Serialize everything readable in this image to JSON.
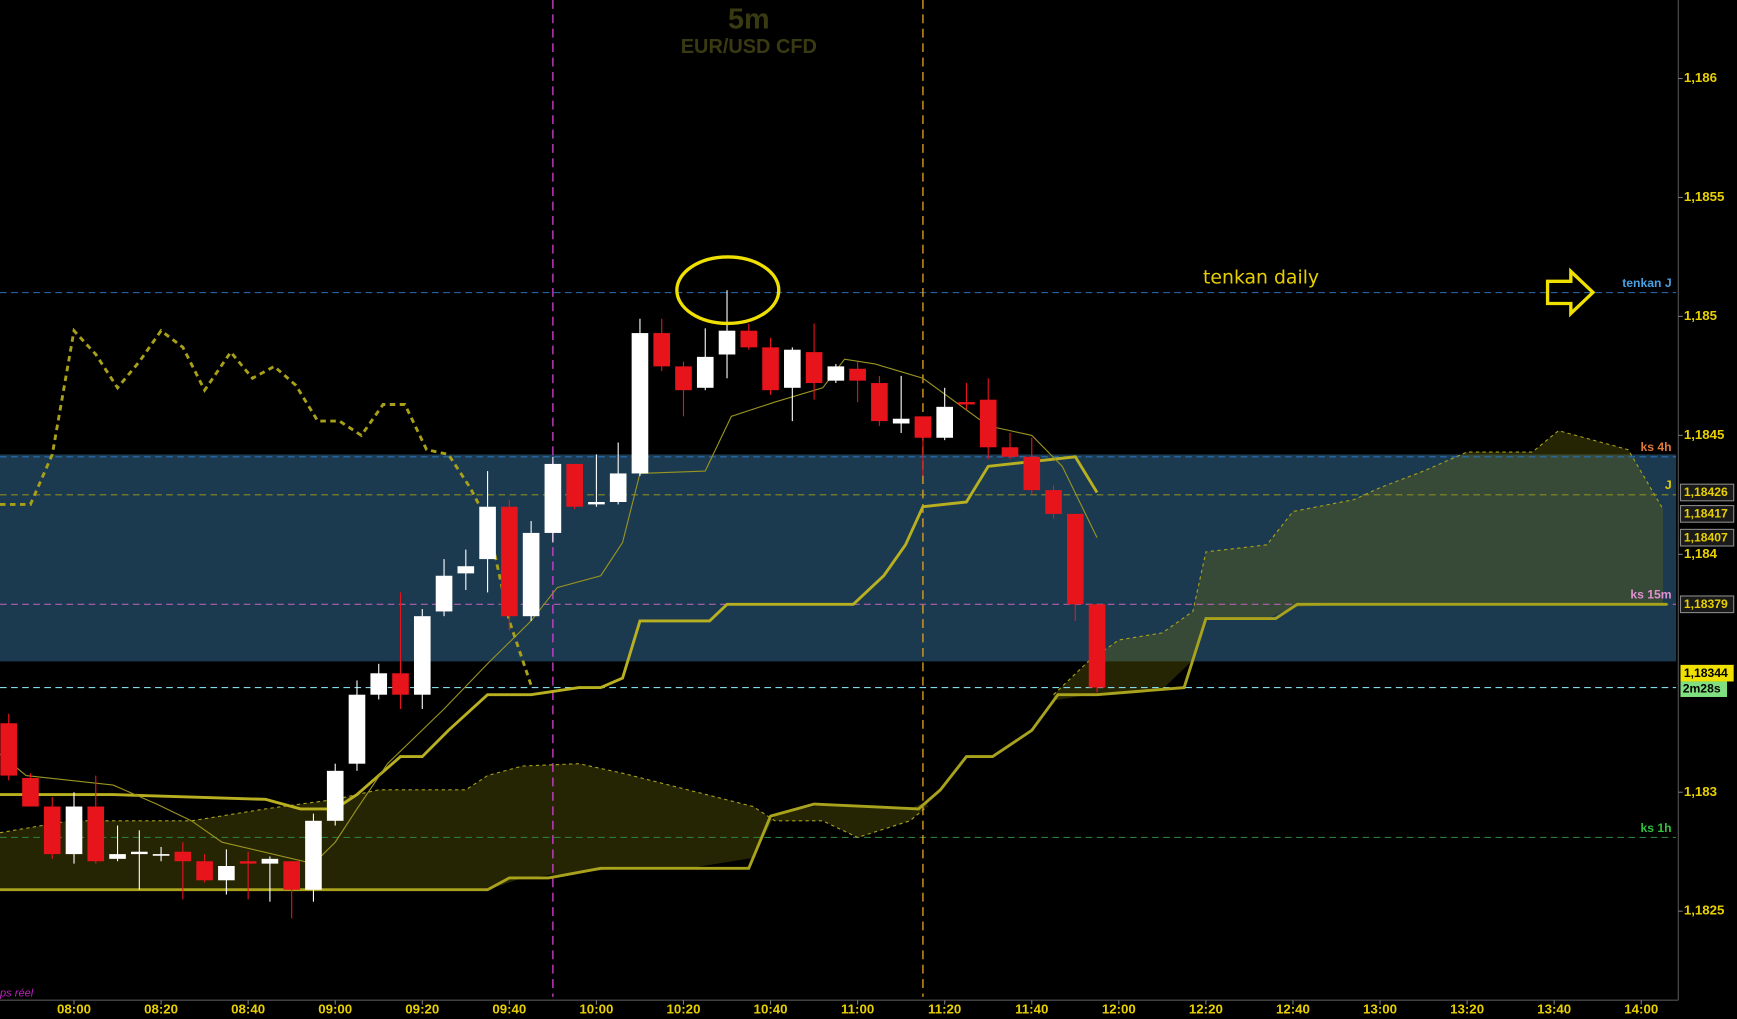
{
  "chart_data": {
    "type": "candlestick",
    "title": "5m",
    "subtitle": "EUR/USD CFD",
    "annotation": "tenkan daily",
    "status": "ps réel",
    "up_color": "#ffffff",
    "down_color": "#e8141c",
    "xlim": [
      "07:43",
      "14:08"
    ],
    "xticks": [
      "08:00",
      "08:20",
      "08:40",
      "09:00",
      "09:20",
      "09:40",
      "10:00",
      "10:20",
      "10:40",
      "11:00",
      "11:20",
      "11:40",
      "12:00",
      "12:20",
      "12:40",
      "13:00",
      "13:20",
      "13:40",
      "14:00"
    ],
    "ylim": [
      1.18214,
      1.18633
    ],
    "yticks": [
      {
        "value": 1.1825,
        "label": "1,1825"
      },
      {
        "value": 1.183,
        "label": "1,183"
      },
      {
        "value": 1.184,
        "label": "1,184"
      },
      {
        "value": 1.1845,
        "label": "1,1845"
      },
      {
        "value": 1.185,
        "label": "1,185"
      },
      {
        "value": 1.1855,
        "label": "1,1855"
      },
      {
        "value": 1.186,
        "label": "1,186"
      }
    ],
    "grid": false,
    "x": [
      "07:45",
      "07:50",
      "07:55",
      "08:00",
      "08:05",
      "08:10",
      "08:15",
      "08:20",
      "08:25",
      "08:30",
      "08:35",
      "08:40",
      "08:45",
      "08:50",
      "08:55",
      "09:00",
      "09:05",
      "09:10",
      "09:15",
      "09:20",
      "09:25",
      "09:30",
      "09:35",
      "09:40",
      "09:45",
      "09:50",
      "09:55",
      "10:00",
      "10:05",
      "10:10",
      "10:15",
      "10:20",
      "10:25",
      "10:30",
      "10:35",
      "10:40",
      "10:45",
      "10:50",
      "10:55",
      "11:00",
      "11:05",
      "11:10",
      "11:15",
      "11:20",
      "11:25",
      "11:30",
      "11:35",
      "11:40",
      "11:45",
      "11:50",
      "11:55"
    ],
    "open": [
      1.18329,
      1.18306,
      1.18294,
      1.18274,
      1.18294,
      1.18272,
      1.18274,
      1.18274,
      1.18275,
      1.18271,
      1.18263,
      1.18271,
      1.1827,
      1.18271,
      1.18259,
      1.18288,
      1.18312,
      1.18341,
      1.1835,
      1.18341,
      1.18376,
      1.18392,
      1.18398,
      1.1842,
      1.18374,
      1.18409,
      1.18438,
      1.18421,
      1.18422,
      1.18434,
      1.18493,
      1.18479,
      1.1847,
      1.18484,
      1.18494,
      1.18487,
      1.1847,
      1.18485,
      1.18473,
      1.18478,
      1.18472,
      1.18455,
      1.18458,
      1.18449,
      1.18464,
      1.18465,
      1.18445,
      1.18441,
      1.18427,
      1.18417,
      1.18379
    ],
    "high": [
      1.18333,
      1.18308,
      1.18298,
      1.183,
      1.18307,
      1.18286,
      1.18284,
      1.18277,
      1.18279,
      1.18274,
      1.18276,
      1.18275,
      1.18273,
      1.18271,
      1.18291,
      1.18312,
      1.18347,
      1.18354,
      1.18384,
      1.18377,
      1.18398,
      1.18402,
      1.18435,
      1.18423,
      1.18414,
      1.18441,
      1.18438,
      1.18442,
      1.18447,
      1.18499,
      1.18499,
      1.18481,
      1.18495,
      1.18511,
      1.18497,
      1.18491,
      1.18487,
      1.18497,
      1.1848,
      1.18481,
      1.18475,
      1.18475,
      1.18458,
      1.1847,
      1.18472,
      1.18474,
      1.18451,
      1.18449,
      1.18429,
      1.18417,
      1.18379
    ],
    "low": [
      1.18305,
      1.18294,
      1.18272,
      1.1827,
      1.1827,
      1.18271,
      1.18259,
      1.18271,
      1.18255,
      1.18262,
      1.18257,
      1.18255,
      1.18254,
      1.18247,
      1.18254,
      1.18286,
      1.18309,
      1.18339,
      1.18335,
      1.18335,
      1.18374,
      1.18385,
      1.18384,
      1.18368,
      1.18372,
      1.18405,
      1.18419,
      1.1842,
      1.18421,
      1.18433,
      1.18477,
      1.18458,
      1.18469,
      1.18474,
      1.18486,
      1.18467,
      1.18456,
      1.18465,
      1.18472,
      1.18464,
      1.18454,
      1.18451,
      1.18433,
      1.18448,
      1.18461,
      1.1844,
      1.1844,
      1.18425,
      1.18415,
      1.18372,
      1.18342
    ],
    "close": [
      1.18307,
      1.18294,
      1.18274,
      1.18294,
      1.18271,
      1.18274,
      1.18275,
      1.18274,
      1.18271,
      1.18263,
      1.18269,
      1.1827,
      1.18272,
      1.18259,
      1.18288,
      1.18309,
      1.18341,
      1.1835,
      1.18341,
      1.18374,
      1.18391,
      1.18395,
      1.1842,
      1.18374,
      1.18409,
      1.18438,
      1.1842,
      1.18422,
      1.18434,
      1.18493,
      1.18479,
      1.18469,
      1.18483,
      1.18494,
      1.18487,
      1.18469,
      1.18486,
      1.18472,
      1.18479,
      1.18473,
      1.18456,
      1.18457,
      1.18449,
      1.18462,
      1.18463,
      1.18445,
      1.18441,
      1.18427,
      1.18417,
      1.18379,
      1.18344
    ],
    "lines": [
      {
        "color": "#a8a21c",
        "style": "thick",
        "x": [
          "07:43",
          "09:35",
          "09:40",
          "09:49",
          "10:01",
          "10:35",
          "10:40",
          "10:50",
          "11:14",
          "11:19",
          "11:25",
          "11:31",
          "11:40",
          "11:46",
          "11:55",
          "12:15",
          "12:20",
          "12:36",
          "12:41",
          "14:06"
        ],
        "values": [
          1.18259,
          1.18259,
          1.18264,
          1.18264,
          1.18268,
          1.18268,
          1.1829,
          1.18295,
          1.18293,
          1.18301,
          1.18315,
          1.18315,
          1.18326,
          1.18341,
          1.18341,
          1.18344,
          1.18373,
          1.18373,
          1.18379,
          1.18379
        ]
      },
      {
        "color": "#a8a21c",
        "style": "dashed",
        "fill": "rgba(110,105,10,0.35)",
        "x": [
          "07:43",
          "07:59",
          "08:27",
          "08:44",
          "09:00",
          "09:10",
          "09:20",
          "09:30",
          "09:35",
          "09:43",
          "09:56",
          "10:06",
          "10:21",
          "10:36",
          "10:41",
          "10:52",
          "11:00",
          "11:12",
          "11:16",
          null,
          "11:45",
          "11:53",
          "12:00",
          "12:10",
          "12:17",
          "12:20",
          "12:34",
          "12:40",
          "12:54",
          "13:00",
          "13:10",
          "13:20",
          "13:35",
          "13:41",
          "13:49",
          "13:57",
          "14:05"
        ],
        "values": [
          1.18283,
          1.18288,
          1.18288,
          1.18293,
          1.18297,
          1.18301,
          1.18301,
          1.18301,
          1.18307,
          1.18311,
          1.18312,
          1.18308,
          1.18301,
          1.18294,
          1.18288,
          1.18288,
          1.18281,
          1.18288,
          1.18294,
          null,
          1.18341,
          1.18355,
          1.18364,
          1.18367,
          1.18376,
          1.18401,
          1.18404,
          1.18418,
          1.18423,
          1.18428,
          1.18435,
          1.18443,
          1.18443,
          1.18452,
          1.18448,
          1.18444,
          1.18419
        ]
      },
      {
        "color": "#b8b020",
        "style": "thick",
        "x": [
          "07:43",
          "08:09",
          "08:27",
          "08:44",
          "08:52",
          "09:00",
          "09:05",
          "09:15",
          "09:20",
          "09:26",
          "09:35",
          "09:45",
          "09:56",
          "10:01",
          "10:06",
          "10:10",
          "10:26",
          "10:30",
          "10:59",
          "11:06",
          "11:11",
          "11:15",
          "11:25",
          "11:30",
          "11:50",
          "11:55"
        ],
        "values": [
          1.18299,
          1.18299,
          1.18298,
          1.18297,
          1.18293,
          1.18293,
          1.18299,
          1.18315,
          1.18315,
          1.18326,
          1.18341,
          1.18341,
          1.18344,
          1.18344,
          1.18348,
          1.18372,
          1.18372,
          1.18379,
          1.18379,
          1.18391,
          1.18404,
          1.1842,
          1.18422,
          1.18437,
          1.18441,
          1.18426
        ]
      },
      {
        "color": "#9a9420",
        "style": "thin",
        "x": [
          "07:43",
          "07:49",
          "08:09",
          "08:19",
          "08:27",
          "08:34",
          "08:55",
          "09:00",
          "09:05",
          "09:12",
          "09:25",
          "09:35",
          "09:45",
          "09:51",
          "10:01",
          "10:06",
          "10:10",
          "10:25",
          "10:31",
          "10:41",
          "10:52",
          "10:57",
          "11:04",
          "11:15",
          "11:30",
          "11:40",
          "11:47",
          "11:55"
        ],
        "values": [
          1.18316,
          1.18307,
          1.18303,
          1.18295,
          1.18288,
          1.18279,
          1.1827,
          1.18279,
          1.18293,
          1.18312,
          1.18335,
          1.18354,
          1.18372,
          1.18386,
          1.18391,
          1.18405,
          1.18434,
          1.18435,
          1.18458,
          1.18464,
          1.1847,
          1.18482,
          1.1848,
          1.18474,
          1.18454,
          1.1845,
          1.18437,
          1.18407
        ]
      },
      {
        "color": "#a8a018",
        "style": "thick-dashed",
        "x": [
          "07:43",
          "07:50",
          "07:55",
          "08:00",
          "08:05",
          "08:10",
          "08:15",
          "08:20",
          "08:25",
          "08:30",
          "08:36",
          "08:41",
          "08:46",
          "08:51",
          "08:56",
          "09:01",
          "09:06",
          "09:11",
          "09:16",
          "09:21",
          "09:26",
          "09:31",
          "09:35",
          "09:40",
          "09:45"
        ],
        "values": [
          1.18421,
          1.18421,
          1.18442,
          1.18494,
          1.18484,
          1.1847,
          1.18481,
          1.18494,
          1.18487,
          1.18469,
          1.18485,
          1.18474,
          1.18479,
          1.18471,
          1.18456,
          1.18456,
          1.1845,
          1.18463,
          1.18463,
          1.18444,
          1.18442,
          1.18428,
          1.18414,
          1.18372,
          1.18345
        ]
      }
    ],
    "zone": {
      "from": 1.18355,
      "to": 1.18442,
      "color": "#1b3a50"
    },
    "vlines": [
      {
        "x": "09:50",
        "color": "#d040d0"
      },
      {
        "x": "11:15",
        "color": "#e0a020"
      }
    ],
    "levels": [
      {
        "value": 1.1851,
        "label": "tenkan J",
        "color": "#2a6fb5",
        "label_color": "#4aa0e0"
      },
      {
        "value": 1.18441,
        "label": "ks 4h",
        "color": "#2a6fb5",
        "label_color": "#e07a3a"
      },
      {
        "value": 1.18425,
        "label": "J",
        "color": "#8a8a20",
        "label_color": "#e8d000"
      },
      {
        "value": 1.18379,
        "label": "ks 15m",
        "color": "#b060b0",
        "label_color": "#e090d0"
      },
      {
        "value": 1.18281,
        "label": "ks 1h",
        "color": "#2a7a3a",
        "label_color": "#30c040"
      }
    ],
    "price_tags": [
      {
        "value": 1.18426,
        "label": "1,18426"
      },
      {
        "value": 1.18417,
        "label": "1,18417"
      },
      {
        "value": 1.18407,
        "label": "1,18407"
      },
      {
        "value": 1.18379,
        "label": "1,18379"
      }
    ],
    "last_price": {
      "value": 1.18344,
      "label": "1,18344",
      "line_color": "#80d8e8"
    },
    "countdown": "2m28s"
  }
}
